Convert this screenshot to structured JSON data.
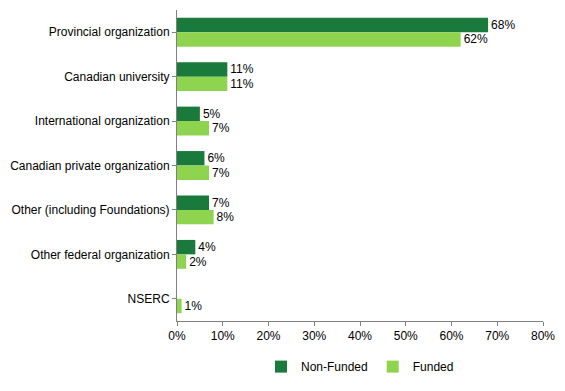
{
  "chart_data": {
    "type": "bar",
    "orientation": "horizontal",
    "categories": [
      "Provincial organization",
      "Canadian university",
      "International organization",
      "Canadian private organization",
      "Other (including Foundations)",
      "Other federal organization",
      "NSERC"
    ],
    "series": [
      {
        "name": "Non-Funded",
        "color": "#1a7a3c",
        "values": [
          68,
          11,
          5,
          6,
          7,
          4,
          null
        ],
        "value_labels": [
          "68%",
          "11%",
          "5%",
          "6%",
          "7%",
          "4%",
          null
        ]
      },
      {
        "name": "Funded",
        "color": "#8ed44f",
        "values": [
          62,
          11,
          7,
          7,
          8,
          2,
          1
        ],
        "value_labels": [
          "62%",
          "11%",
          "7%",
          "7%",
          "8%",
          "2%",
          "1%"
        ]
      }
    ],
    "xlim": [
      0,
      80
    ],
    "xticks": [
      {
        "value": 0,
        "label": "0%"
      },
      {
        "value": 10,
        "label": "10%"
      },
      {
        "value": 20,
        "label": "20%"
      },
      {
        "value": 30,
        "label": "30%"
      },
      {
        "value": 40,
        "label": "40%"
      },
      {
        "value": 50,
        "label": "50%"
      },
      {
        "value": 60,
        "label": "60%"
      },
      {
        "value": 70,
        "label": "70%"
      },
      {
        "value": 80,
        "label": "80%"
      }
    ],
    "grid": false,
    "legend": "bottom",
    "data_labels": true
  }
}
